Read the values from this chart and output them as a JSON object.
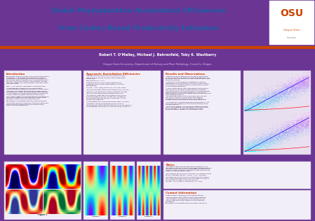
{
  "title_line1": "Global Phytoplankton Assimilation Efficiencies",
  "title_line2": "from Carbon Based Productivity Estimates",
  "title_color": "#1a5fa8",
  "header_bg": "#ffffff",
  "author_line1": "Robert T. O’Malley, Michael J. Behrenfeld, Toby K. Westberry",
  "author_line2": "Oregon State University, Department of Botany and Plant Pathology, Corvallis, Oregon",
  "author_bg": "#5c2a7e",
  "body_bg": "#6b3594",
  "panel_bg": "#f2eef8",
  "osu_orange": "#cc4400",
  "red_title": "#cc3300",
  "body_text": "#1a0030",
  "col1_title": "Introduction",
  "col2_title": "Approach: Assimilation Efficiencies",
  "col3_title": "Results and Observations",
  "notes_title": "Notes",
  "contact_title": "Contact Information"
}
